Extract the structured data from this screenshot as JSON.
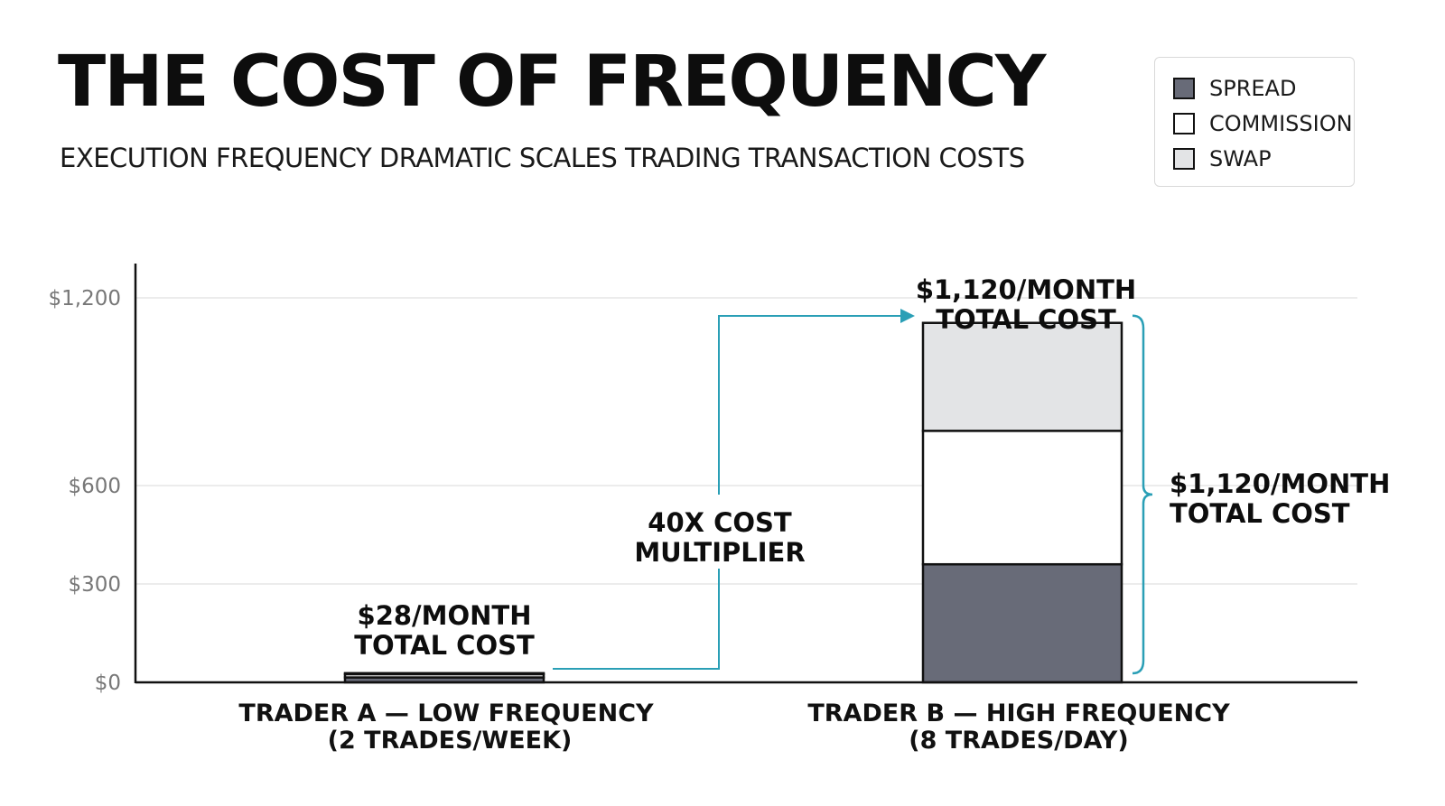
{
  "header": {
    "title": "THE COST OF FREQUENCY",
    "subtitle": "EXECUTION FREQUENCY DRAMATIC SCALES TRADING TRANSACTION COSTS"
  },
  "legend": {
    "items": [
      {
        "label": "SPREAD",
        "color": "#686b78"
      },
      {
        "label": "COMMISSION",
        "color": "#ffffff"
      },
      {
        "label": "SWAP",
        "color": "#e3e4e6"
      }
    ]
  },
  "annotations": {
    "trader_a_total": [
      "$28/MONTH",
      "TOTAL COST"
    ],
    "trader_b_total_top": [
      "$1,120/MONTH",
      "TOTAL COST"
    ],
    "trader_b_total_side": [
      "$1,120/MONTH",
      "TOTAL COST"
    ],
    "multiplier": [
      "40X COST",
      "MULTIPLIER"
    ]
  },
  "colors": {
    "accent": "#2a9fb6",
    "axis": "#111111",
    "grid": "#e6e6e6"
  },
  "chart_data": {
    "type": "bar",
    "stacked": true,
    "title": "THE COST OF FREQUENCY",
    "subtitle": "EXECUTION FREQUENCY DRAMATIC SCALES TRADING TRANSACTION COSTS",
    "categories": [
      [
        "TRADER A — LOW FREQUENCY",
        "(2 TRADES/WEEK)"
      ],
      [
        "TRADER B — HIGH FREQUENCY",
        "(8 TRADES/DAY)"
      ]
    ],
    "series": [
      {
        "name": "SPREAD",
        "values": [
          15,
          360
        ],
        "color": "#686b78"
      },
      {
        "name": "COMMISSION",
        "values": [
          10,
          415
        ],
        "color": "#ffffff"
      },
      {
        "name": "SWAP",
        "values": [
          3,
          345
        ],
        "color": "#e3e4e6"
      }
    ],
    "totals": [
      28,
      1120
    ],
    "yticks": [
      0,
      300,
      600,
      1200
    ],
    "ytick_labels": [
      "$0",
      "$300",
      "$600",
      "$1,200"
    ],
    "ylim": [
      0,
      1300
    ],
    "grid": true,
    "legend_position": "top-right",
    "xlabel": "",
    "ylabel": ""
  }
}
